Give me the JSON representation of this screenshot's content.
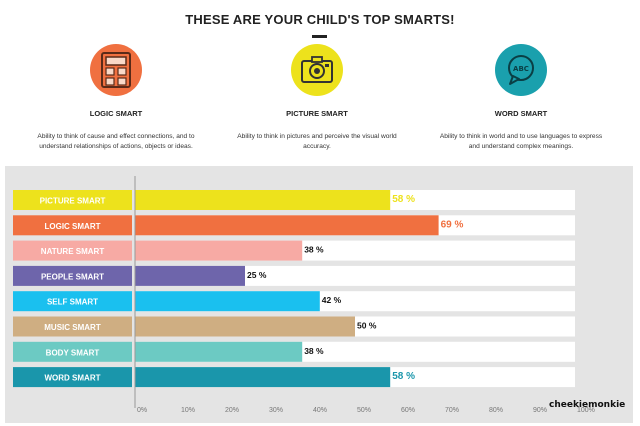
{
  "header": {
    "title": "THESE ARE YOUR CHILD'S TOP SMARTS!"
  },
  "cards": [
    {
      "title": "LOGIC SMART",
      "desc_line1": "Ability to think of cause and effect connections, and to",
      "desc_line2": "understand relationships of actions, objects or ideas.",
      "color": "#f07040"
    },
    {
      "title": "PICTURE SMART",
      "desc_line1": "Ability to think in pictures and perceive the visual world",
      "desc_line2": "accuracy.",
      "color": "#ede21c"
    },
    {
      "title": "WORD SMART",
      "desc_line1": "Ability to think in world and to use languages to express",
      "desc_line2": "and understand complex meanings.",
      "color": "#1aa0ad",
      "badge": "ABC"
    }
  ],
  "chart_data": {
    "type": "bar",
    "orientation": "horizontal",
    "title": "",
    "categories": [
      "PICTURE SMART",
      "LOGIC SMART",
      "NATURE SMART",
      "PEOPLE SMART",
      "SELF SMART",
      "MUSIC SMART",
      "BODY SMART",
      "WORD SMART"
    ],
    "values": [
      58,
      69,
      38,
      25,
      42,
      50,
      38,
      58
    ],
    "value_labels": [
      "58 %",
      "69 %",
      "38 %",
      "25 %",
      "42 %",
      "50 %",
      "38 %",
      "58 %"
    ],
    "colors": [
      "#ede21c",
      "#f07040",
      "#f7aaa4",
      "#6e65ab",
      "#1ac0ef",
      "#cfae82",
      "#6ccac3",
      "#1a96ab"
    ],
    "label_colors": [
      "#ede21c",
      "#f07040",
      "#111111",
      "#111111",
      "#111111",
      "#111111",
      "#111111",
      "#1a96ab"
    ],
    "xlim": [
      0,
      100
    ],
    "xticks": [
      "0%",
      "10%",
      "20%",
      "30%",
      "40%",
      "50%",
      "60%",
      "70%",
      "80%",
      "90%",
      "100%"
    ],
    "xlabel": "",
    "ylabel": "",
    "grid": false
  },
  "footer": {
    "watermark": "cheekiemonkie"
  }
}
